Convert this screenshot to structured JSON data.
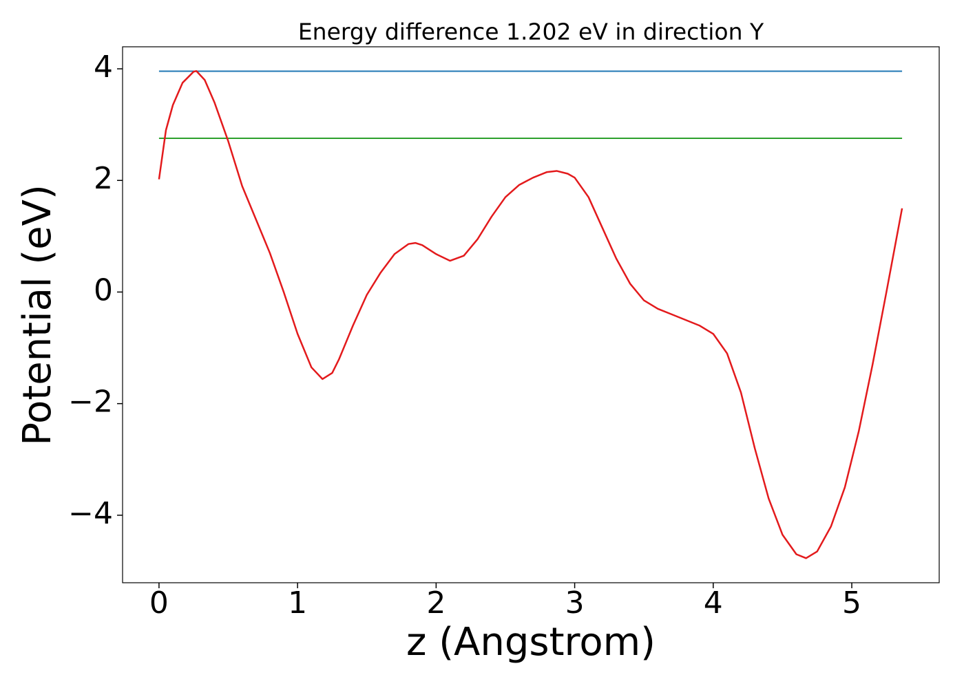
{
  "chart_data": {
    "type": "line",
    "title": "Energy difference 1.202 eV in direction Y",
    "x_label": "z (Angstrom)",
    "y_label": "Potential (eV)",
    "xlim": [
      -0.263,
      5.631
    ],
    "ylim": [
      -5.21,
      4.395
    ],
    "xticks": [
      0,
      1,
      2,
      3,
      4,
      5
    ],
    "yticks": [
      {
        "value": -4,
        "label": "−4"
      },
      {
        "value": -2,
        "label": "−2"
      },
      0,
      2,
      4
    ],
    "hlines": [
      {
        "value": 3.957,
        "color": "#1f77b4"
      },
      {
        "value": 2.755,
        "color": "#2ca02c"
      }
    ],
    "series": [
      {
        "color": "#e31a1c",
        "x": [
          0,
          0.05,
          0.1,
          0.17,
          0.25,
          0.27,
          0.33,
          0.4,
          0.5,
          0.6,
          0.7,
          0.8,
          0.9,
          1.0,
          1.1,
          1.18,
          1.25,
          1.3,
          1.4,
          1.5,
          1.6,
          1.7,
          1.8,
          1.85,
          1.9,
          2.0,
          2.1,
          2.2,
          2.3,
          2.4,
          2.5,
          2.6,
          2.7,
          2.8,
          2.87,
          2.95,
          3.0,
          3.1,
          3.2,
          3.3,
          3.4,
          3.5,
          3.6,
          3.7,
          3.8,
          3.9,
          4.0,
          4.1,
          4.2,
          4.3,
          4.4,
          4.5,
          4.6,
          4.67,
          4.75,
          4.85,
          4.95,
          5.05,
          5.15,
          5.25,
          5.363
        ],
        "values": [
          2.02,
          2.9,
          3.35,
          3.75,
          3.95,
          3.96,
          3.8,
          3.4,
          2.7,
          1.9,
          1.3,
          0.7,
          0.0,
          -0.75,
          -1.35,
          -1.56,
          -1.45,
          -1.2,
          -0.6,
          -0.05,
          0.35,
          0.68,
          0.86,
          0.88,
          0.84,
          0.68,
          0.56,
          0.65,
          0.95,
          1.35,
          1.7,
          1.92,
          2.05,
          2.15,
          2.17,
          2.12,
          2.05,
          1.7,
          1.15,
          0.6,
          0.15,
          -0.15,
          -0.3,
          -0.4,
          -0.5,
          -0.6,
          -0.75,
          -1.1,
          -1.8,
          -2.8,
          -3.7,
          -4.35,
          -4.7,
          -4.77,
          -4.65,
          -4.2,
          -3.5,
          -2.5,
          -1.3,
          0.0,
          1.5
        ]
      }
    ]
  }
}
